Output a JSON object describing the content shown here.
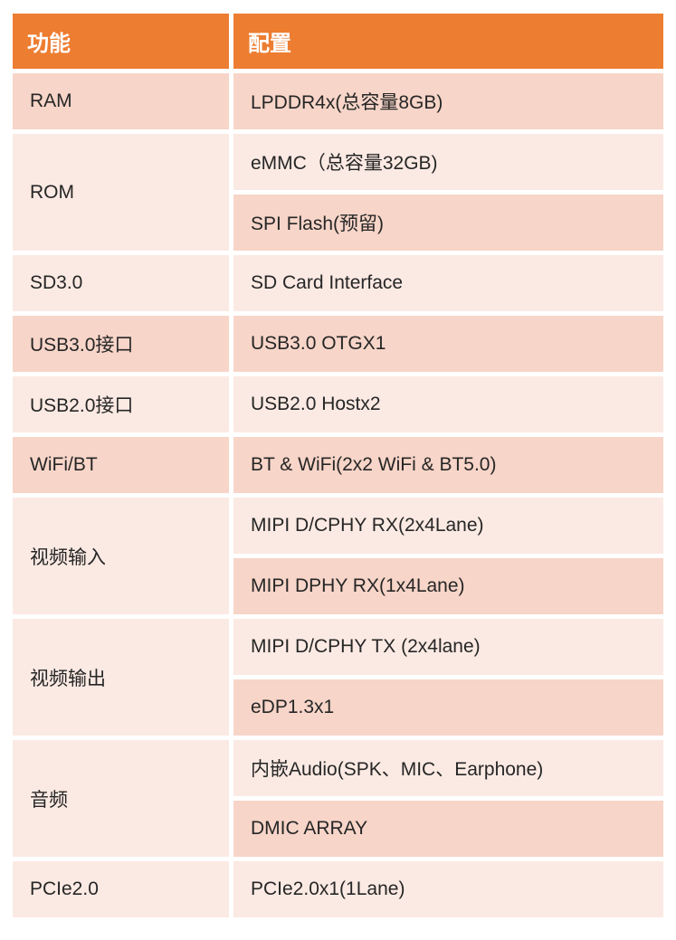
{
  "table": {
    "headers": [
      {
        "label": "功能"
      },
      {
        "label": "配置"
      }
    ],
    "groups": [
      {
        "function": "RAM",
        "configs": [
          "LPDDR4x(总容量8GB)"
        ]
      },
      {
        "function": "ROM",
        "configs": [
          "eMMC（总容量32GB)",
          "SPI Flash(预留)"
        ]
      },
      {
        "function": "SD3.0",
        "configs": [
          "SD Card Interface"
        ]
      },
      {
        "function": "USB3.0接口",
        "configs": [
          "USB3.0 OTGX1"
        ]
      },
      {
        "function": "USB2.0接口",
        "configs": [
          "USB2.0 Hostx2"
        ]
      },
      {
        "function": "WiFi/BT",
        "configs": [
          "BT & WiFi(2x2 WiFi & BT5.0)"
        ]
      },
      {
        "function": "视频输入",
        "configs": [
          "MIPI D/CPHY RX(2x4Lane)",
          "MIPI DPHY RX(1x4Lane)"
        ]
      },
      {
        "function": "视频输出",
        "configs": [
          "MIPI D/CPHY TX (2x4lane)",
          "eDP1.3x1"
        ]
      },
      {
        "function": "音频",
        "configs": [
          "内嵌Audio(SPK、MIC、Earphone)",
          "DMIC ARRAY"
        ]
      },
      {
        "function": "PCIe2.0",
        "configs": [
          "PCIe2.0x1(1Lane)"
        ]
      }
    ],
    "colors": {
      "header_bg": "#ED7D31",
      "header_text": "#FFFFFF",
      "band_light": "#FBEAE3",
      "band_dark": "#F7D5C8",
      "body_text": "#262626",
      "page_bg": "#FFFFFF"
    }
  }
}
